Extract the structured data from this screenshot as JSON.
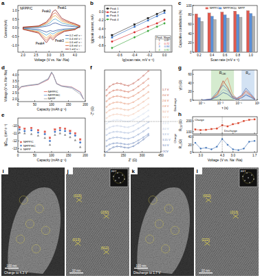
{
  "chart_data": [
    {
      "panel": "a",
      "type": "line",
      "title": "NFPP/C",
      "x_label": "Voltage (V vs. Na⁺/Na)",
      "y_label": "Current (mA)",
      "xlim": [
        1.8,
        4.4
      ],
      "xticks": [
        {
          "value": 2,
          "label": "2.0"
        },
        2.5,
        {
          "value": 3,
          "label": "3.0"
        },
        3.5,
        {
          "value": 4,
          "label": "4.0"
        }
      ],
      "ylim": [
        -1.4,
        1.3
      ],
      "yticks": [
        {
          "value": -1,
          "label": "-1.0"
        },
        -0.5,
        {
          "value": 0,
          "label": "0.0"
        },
        0.5,
        {
          "value": 1,
          "label": "1.0"
        }
      ],
      "x": [
        2.0,
        2.6,
        2.9,
        3.05,
        3.15,
        3.25,
        3.5,
        3.8,
        4.0,
        4.2,
        4.0,
        3.6,
        3.3,
        3.15,
        3.05,
        2.9,
        2.6,
        2.0
      ],
      "series": [
        {
          "name": "0.2 mV s⁻¹",
          "color": "#2b4c9b",
          "values": [
            0.01,
            0.03,
            0.1,
            0.17,
            0.26,
            0.29,
            0.15,
            0.1,
            0.07,
            0.03,
            -0.03,
            -0.06,
            -0.13,
            -0.2,
            -0.15,
            -0.24,
            -0.08,
            -0.02
          ]
        },
        {
          "name": "0.4 mV s⁻¹",
          "color": "#4aa3c9",
          "values": [
            0.02,
            0.06,
            0.18,
            0.31,
            0.47,
            0.52,
            0.28,
            0.18,
            0.12,
            0.06,
            -0.05,
            -0.1,
            -0.22,
            -0.35,
            -0.27,
            -0.42,
            -0.15,
            -0.04
          ]
        },
        {
          "name": "0.6 mV s⁻¹",
          "color": "#e8a33a",
          "values": [
            0.03,
            0.08,
            0.25,
            0.43,
            0.66,
            0.72,
            0.38,
            0.25,
            0.17,
            0.08,
            -0.07,
            -0.14,
            -0.31,
            -0.49,
            -0.38,
            -0.59,
            -0.21,
            -0.06
          ]
        },
        {
          "name": "0.8 mV s⁻¹",
          "color": "#d9542c",
          "values": [
            0.04,
            0.1,
            0.3,
            0.53,
            0.8,
            0.88,
            0.47,
            0.3,
            0.21,
            0.1,
            -0.09,
            -0.17,
            -0.38,
            -0.6,
            -0.47,
            -0.72,
            -0.26,
            -0.07
          ]
        },
        {
          "name": "1 mV s⁻¹",
          "color": "#8b1a1a",
          "values": [
            0.05,
            0.12,
            0.35,
            0.62,
            0.95,
            1.05,
            0.55,
            0.35,
            0.25,
            0.12,
            -0.1,
            -0.2,
            -0.45,
            -0.7,
            -0.55,
            -0.85,
            -0.3,
            -0.08
          ]
        }
      ],
      "annotations": [
        "Peak1",
        "Peak2",
        "Peak3",
        "Peak4"
      ],
      "legend": "lower right"
    },
    {
      "panel": "b",
      "type": "line",
      "x_label": "lg(scan rate, mV s⁻¹)",
      "y_label": "lg(peak current, mA)",
      "xlim": [
        -0.8,
        0.1
      ],
      "xticks": [
        -0.6,
        -0.4,
        -0.2,
        {
          "value": 0,
          "label": "0.0"
        }
      ],
      "ylim": [
        -0.95,
        0.15
      ],
      "yticks": [
        -0.8,
        -0.6,
        -0.4,
        -0.2,
        {
          "value": 0,
          "label": "0.0"
        }
      ],
      "x": [
        -0.7,
        -0.4,
        -0.22,
        -0.1,
        0
      ],
      "series": [
        {
          "name": "Peak 1",
          "color": "#222222",
          "marker": "square",
          "values": [
            -0.55,
            -0.3,
            -0.15,
            -0.05,
            0.03
          ]
        },
        {
          "name": "Peak 2",
          "color": "#d62728",
          "marker": "circle",
          "values": [
            -0.7,
            -0.48,
            -0.35,
            -0.27,
            -0.18
          ]
        },
        {
          "name": "Peak 3",
          "color": "#1f5fbf",
          "marker": "triangle",
          "values": [
            -0.6,
            -0.35,
            -0.2,
            -0.1,
            -0.02
          ]
        },
        {
          "name": "Peak 4",
          "color": "#2ca02c",
          "marker": "diamond",
          "values": [
            -0.85,
            -0.6,
            -0.45,
            -0.35,
            -0.27
          ]
        }
      ],
      "legend": "upper left",
      "table": {
        "columns": [
          "Peak",
          "Slope"
        ],
        "rows": [
          [
            1,
            0.87
          ],
          [
            2,
            0.72
          ],
          [
            3,
            0.84
          ],
          [
            4,
            0.82
          ]
        ]
      }
    },
    {
      "panel": "c",
      "type": "bar",
      "x_label": "Scan rate (mV s⁻¹)",
      "y_label": "Capacitive contribution (%)",
      "categories": [
        "0.2",
        "0.4",
        "0.6",
        "0.8",
        "1.0"
      ],
      "ylim": [
        0,
        100
      ],
      "yticks": [
        0,
        20,
        40,
        60,
        80,
        100
      ],
      "series": [
        {
          "name": "NFPP/C",
          "color": "#e05a4f",
          "values": [
            82,
            84,
            86,
            88,
            89
          ]
        },
        {
          "name": "NFPP/HC",
          "color": "#5b8fd6",
          "values": [
            74,
            77,
            80,
            81,
            83
          ]
        },
        {
          "name": "NFPP",
          "color": "#b0b0b0",
          "values": [
            66,
            70,
            73,
            75,
            77
          ]
        }
      ],
      "legend": "top"
    },
    {
      "panel": "d",
      "type": "line",
      "x_label": "Capacity (mAh g⁻¹)",
      "y_label": "Voltage (V vs. Na⁺/Na)",
      "xlim": [
        0,
        200
      ],
      "xticks": [
        0,
        50,
        100,
        150,
        200
      ],
      "ylim": [
        1.8,
        4.4
      ],
      "yticks": [
        {
          "value": 2,
          "label": "2.0"
        },
        2.5,
        {
          "value": 3,
          "label": "3.0"
        },
        3.5,
        {
          "value": 4,
          "label": "4.0"
        }
      ],
      "x": [
        0,
        10,
        30,
        60,
        90,
        100,
        105,
        115,
        130,
        160,
        185,
        195
      ],
      "series": [
        {
          "name": "NFPP/C",
          "color": "#e05a4f",
          "values": [
            2.7,
            3.0,
            3.1,
            3.2,
            3.6,
            4.15,
            4.0,
            3.3,
            3.1,
            3.0,
            2.6,
            2.0
          ]
        },
        {
          "name": "NFPP/HC",
          "color": "#5b8fd6",
          "values": [
            2.75,
            3.02,
            3.12,
            3.22,
            3.65,
            4.2,
            4.0,
            3.28,
            3.08,
            2.97,
            2.55,
            2.0
          ]
        },
        {
          "name": "NFPP",
          "color": "#9a9a9a",
          "values": [
            2.8,
            3.05,
            3.15,
            3.25,
            3.7,
            4.25,
            4.0,
            3.25,
            3.05,
            2.9,
            2.4,
            2.0
          ]
        }
      ],
      "legend": "bottom"
    },
    {
      "panel": "e",
      "type": "scatter",
      "x_label": "Capacity (mAh g⁻¹)",
      "y_label": [
        "lgD",
        "Na+",
        " (cm² s⁻¹)"
      ],
      "xlim": [
        0,
        200
      ],
      "xticks": [
        0,
        50,
        100,
        150,
        200
      ],
      "ylim": [
        -13.5,
        -9
      ],
      "yticks": [
        -13,
        -12,
        -11,
        -10
      ],
      "x": [
        5,
        20,
        40,
        60,
        80,
        95,
        110,
        125,
        140,
        155,
        170,
        185
      ],
      "series": [
        {
          "name": "NFPP/C",
          "color": "#e05a4f",
          "marker": "square",
          "values": [
            -10.2,
            -10.4,
            -10.3,
            -10.6,
            -10.8,
            -11.6,
            -10.5,
            -10.3,
            -10.4,
            -10.7,
            -11.0,
            -11.8
          ]
        },
        {
          "name": "NFPP/HC",
          "color": "#3a6fc4",
          "marker": "circle",
          "values": [
            -10.5,
            -10.7,
            -10.6,
            -10.9,
            -11.1,
            -12.0,
            -10.8,
            -10.6,
            -10.7,
            -11.0,
            -11.3,
            -12.2
          ]
        },
        {
          "name": "NFPP",
          "color": "#8a8a8a",
          "marker": "triangle",
          "values": [
            -10.9,
            -11.0,
            -11.1,
            -11.3,
            -11.6,
            -12.5,
            -11.2,
            -11.0,
            -11.2,
            -11.5,
            -11.9,
            -12.8
          ]
        }
      ],
      "legend": "lower left"
    },
    {
      "panel": "f",
      "type": "line",
      "x_label": "Z′ (Ω)",
      "y_label": "-Z″ (Ω)",
      "xlim": [
        0,
        450
      ],
      "xticks": [
        0,
        150,
        300,
        450
      ],
      "ylim": [
        0,
        200
      ],
      "tick_labels": "x",
      "x": [
        15,
        40,
        70,
        100,
        130,
        160,
        190,
        230,
        270,
        310,
        350
      ],
      "series": [
        {
          "name": "1.7 V",
          "color": "#b5321f",
          "marker": "circle",
          "values": [
            5,
            40,
            62,
            72,
            68,
            55,
            48,
            70,
            105,
            145,
            190
          ]
        },
        {
          "name": "2.0 V",
          "color": "#c94a2c",
          "marker": "circle",
          "values": [
            5,
            35,
            55,
            62,
            58,
            48,
            42,
            62,
            95,
            130,
            170
          ]
        },
        {
          "name": "2.6 V",
          "color": "#d8653c",
          "marker": "circle",
          "values": [
            5,
            32,
            50,
            56,
            52,
            42,
            38,
            58,
            88,
            122,
            160
          ]
        },
        {
          "name": "2.8 V",
          "color": "#e2825a",
          "marker": "circle",
          "values": [
            5,
            30,
            46,
            52,
            48,
            38,
            34,
            52,
            82,
            115,
            150
          ]
        },
        {
          "name": "3.0 V",
          "color": "#eaa07c",
          "marker": "circle",
          "values": [
            5,
            28,
            42,
            47,
            42,
            33,
            30,
            48,
            78,
            110,
            145
          ]
        },
        {
          "name": "3.3 V",
          "color": "#f1bda0",
          "marker": "circle",
          "values": [
            5,
            26,
            40,
            44,
            40,
            30,
            28,
            45,
            75,
            105,
            140
          ]
        },
        {
          "name": "4.3 V",
          "color": "#c9d6ea",
          "marker": "circle",
          "values": [
            5,
            25,
            38,
            42,
            38,
            29,
            27,
            44,
            72,
            102,
            135
          ]
        },
        {
          "name": "4.0 V",
          "color": "#aebfdd",
          "marker": "circle",
          "values": [
            5,
            24,
            36,
            40,
            36,
            28,
            26,
            42,
            70,
            100,
            132
          ]
        },
        {
          "name": "3.3 V",
          "color": "#8fa7d0",
          "marker": "circle",
          "values": [
            5,
            24,
            35,
            38,
            34,
            27,
            25,
            40,
            68,
            98,
            130
          ]
        },
        {
          "name": "3.15 V",
          "color": "#6f8cc2",
          "marker": "circle",
          "values": [
            5,
            23,
            34,
            37,
            33,
            26,
            24,
            38,
            65,
            95,
            128
          ]
        },
        {
          "name": "3.0 V",
          "color": "#4f70b1",
          "marker": "circle",
          "values": [
            5,
            22,
            33,
            36,
            32,
            25,
            23,
            36,
            62,
            92,
            125
          ]
        },
        {
          "name": "OCV",
          "color": "#2f529a",
          "marker": "circle",
          "values": [
            5,
            30,
            50,
            58,
            56,
            48,
            44,
            60,
            90,
            125,
            165
          ]
        }
      ],
      "annotations": [
        "Discharge",
        "Charge"
      ]
    },
    {
      "panel": "g",
      "type": "line",
      "log": "x",
      "x_label": "τ (s)",
      "y_label": "γ(τ) (Ω)",
      "xlim": [
        1e-06,
        10
      ],
      "xticks": [
        {
          "value": 1e-05,
          "label": "10⁻⁵"
        },
        {
          "value": 0.001,
          "label": "10⁻³"
        },
        {
          "value": 0.1,
          "label": "10⁻¹"
        },
        {
          "value": 10,
          "label": "10¹"
        }
      ],
      "ylim": [
        0,
        70
      ],
      "yticks": [
        0,
        20,
        40,
        60
      ],
      "x": [
        1e-05,
        0.0001,
        0.0005,
        0.002,
        0.006,
        0.02,
        0.06,
        0.2,
        0.6,
        2,
        6
      ],
      "series": [
        {
          "color": "#b5321f",
          "values": [
            0,
            2,
            15,
            45,
            30,
            8,
            3,
            10,
            22,
            12,
            2
          ]
        },
        {
          "color": "#e2825a",
          "values": [
            0,
            2,
            12,
            38,
            52,
            15,
            4,
            8,
            18,
            10,
            2
          ]
        },
        {
          "color": "#4f70b1",
          "values": [
            0,
            3,
            20,
            35,
            25,
            10,
            5,
            12,
            28,
            15,
            3
          ]
        },
        {
          "color": "#8fa7d0",
          "values": [
            0,
            1,
            10,
            25,
            20,
            6,
            2,
            6,
            14,
            8,
            1
          ]
        },
        {
          "color": "#2f529a",
          "values": [
            0,
            2,
            8,
            18,
            14,
            5,
            2,
            5,
            12,
            7,
            1
          ]
        }
      ],
      "regions": [
        {
          "label": [
            "R",
            "CEI"
          ],
          "range": [
            0.0001,
            0.03
          ],
          "color": "#d5ebcf"
        },
        {
          "label": [
            "R",
            "ct"
          ],
          "range": [
            0.2,
            5
          ],
          "color": "#d3e2f3"
        }
      ]
    },
    {
      "panel": "h",
      "type": "line",
      "y_label": [
        "R",
        "CEI",
        " (Ω)"
      ],
      "categories": [
        null,
        "3.0",
        null,
        null,
        null,
        "4.3",
        null,
        "3.0",
        null,
        null,
        null,
        "1.7"
      ],
      "ylim": [
        80,
        240
      ],
      "yticks": [
        100,
        200
      ],
      "tick_labels": "y",
      "series": [
        {
          "color": "#d9442b",
          "marker": "square",
          "values": [
            120,
            115,
            118,
            125,
            130,
            160,
            150,
            170,
            180,
            200,
            210,
            215
          ]
        }
      ],
      "annotations": [
        "Charge",
        "Discharge"
      ]
    },
    {
      "type": "line",
      "x_label": "Voltage (V vs. Na⁺/Na)",
      "y_label": [
        "R",
        "ct",
        " (Ω)"
      ],
      "categories": [
        null,
        "3.0",
        null,
        null,
        null,
        "4.3",
        null,
        "3.0",
        null,
        null,
        null,
        "1.7"
      ],
      "ylim": [
        0,
        45
      ],
      "yticks": [
        0,
        20,
        40
      ],
      "series": [
        {
          "color": "#3a6fb5",
          "marker": "circle",
          "values": [
            25,
            10,
            12,
            8,
            15,
            35,
            20,
            8,
            6,
            10,
            28,
            30
          ]
        }
      ]
    }
  ],
  "images": [
    {
      "panel": "i",
      "scale_bar": "100 nm",
      "caption": "Charge to 4.3 V"
    },
    {
      "panel": "j",
      "scale_bar": "10 nm",
      "labels": [
        "(015)",
        "(232)",
        "(013)",
        "(612)"
      ],
      "inset": "FFT"
    },
    {
      "panel": "k",
      "scale_bar": "100 nm",
      "caption": "Discharge to 1.7 V"
    },
    {
      "panel": "l",
      "scale_bar": "10 nm",
      "labels": [
        "(002)",
        "(213)",
        "(222)"
      ],
      "inset": "FFT"
    }
  ]
}
